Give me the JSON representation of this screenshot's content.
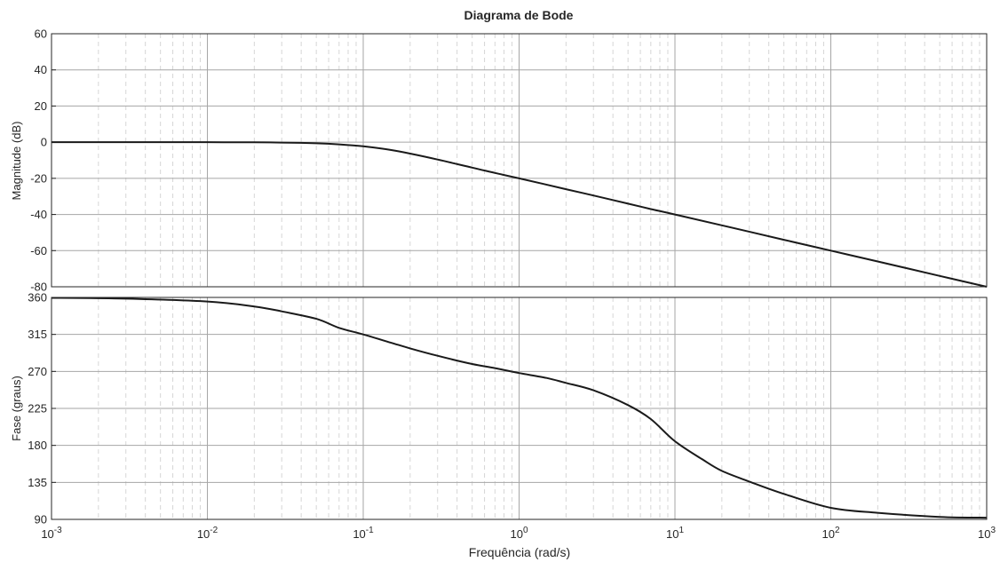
{
  "title": "Diagrama de Bode",
  "xlabel": "Frequência  (rad/s)",
  "chart_data": [
    {
      "type": "line",
      "panel": "magnitude",
      "ylabel": "Magnitude (dB)",
      "xscale": "log",
      "xlim": [
        0.001,
        1000
      ],
      "ylim": [
        -80,
        60
      ],
      "yticks": [
        -80,
        -60,
        -40,
        -20,
        0,
        20,
        40,
        60
      ],
      "grid": true,
      "series": [
        {
          "color": "#1a1a1a",
          "x": [
            0.001,
            0.002,
            0.005,
            0.01,
            0.02,
            0.03,
            0.05,
            0.07,
            0.1,
            0.15,
            0.2,
            0.3,
            0.5,
            0.7,
            1,
            2,
            3,
            5,
            7,
            10,
            20,
            50,
            100,
            200,
            500,
            1000
          ],
          "y": [
            0,
            0,
            0,
            0,
            -0.1,
            -0.2,
            -0.6,
            -1.2,
            -2.3,
            -4.3,
            -6.3,
            -9.6,
            -14.1,
            -17.0,
            -20.0,
            -26.0,
            -29.5,
            -34.0,
            -37.0,
            -40.0,
            -46.0,
            -54.0,
            -60.0,
            -66.0,
            -74.0,
            -80.0
          ]
        }
      ]
    },
    {
      "type": "line",
      "panel": "phase",
      "ylabel": "Fase (graus)",
      "xscale": "log",
      "xlim": [
        0.001,
        1000
      ],
      "ylim": [
        90,
        360
      ],
      "yticks": [
        90,
        135,
        180,
        225,
        270,
        315,
        360
      ],
      "grid": true,
      "series": [
        {
          "color": "#1a1a1a",
          "x": [
            0.001,
            0.003,
            0.01,
            0.02,
            0.03,
            0.05,
            0.07,
            0.1,
            0.15,
            0.2,
            0.3,
            0.5,
            0.7,
            1,
            1.5,
            2,
            3,
            5,
            7,
            10,
            15,
            20,
            30,
            50,
            100,
            200,
            500,
            1000
          ],
          "y": [
            359.5,
            358.5,
            355,
            349,
            343,
            334,
            323,
            315,
            305,
            298,
            289,
            279,
            274,
            268,
            262,
            256,
            247,
            229,
            212,
            185,
            163,
            149,
            136,
            121,
            104,
            98,
            93,
            92
          ]
        }
      ]
    }
  ],
  "xticks": [
    {
      "base": "10",
      "exp": "-3"
    },
    {
      "base": "10",
      "exp": "-2"
    },
    {
      "base": "10",
      "exp": "-1"
    },
    {
      "base": "10",
      "exp": "0"
    },
    {
      "base": "10",
      "exp": "1"
    },
    {
      "base": "10",
      "exp": "2"
    },
    {
      "base": "10",
      "exp": "3"
    }
  ]
}
